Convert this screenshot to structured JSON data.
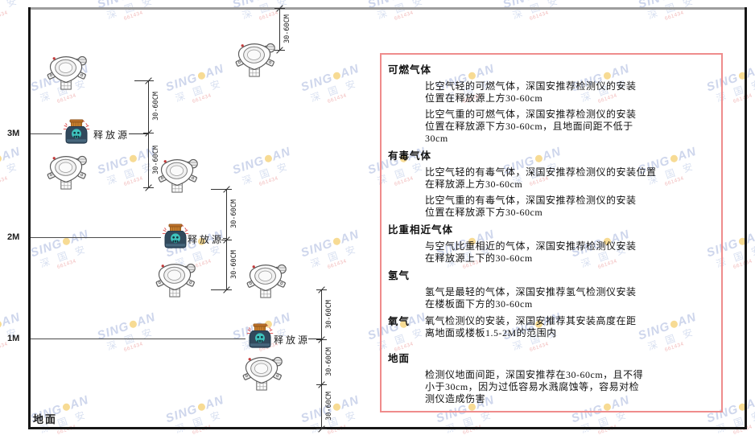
{
  "watermark": {
    "brand_left": "SING",
    "brand_right": "AN",
    "cn": "深 国 安",
    "code": "661434"
  },
  "colors": {
    "panel_border": "#ef8c8c",
    "watermark_blue": "#7d94cc",
    "watermark_red": "#e15a5a",
    "source_cap_orange": "#c8802f",
    "source_body_navy": "#31495c",
    "source_emblem_teal": "#3fc3bd",
    "detector_outline_gray": "#5a5a5a",
    "ceiling_gray": "#9d9d9d"
  },
  "diagram": {
    "ground_label": "地面",
    "release_source_label": "释放源",
    "dim_label": "30-60CM",
    "height_labels": [
      "3M",
      "2M",
      "1M"
    ]
  },
  "panel": {
    "sections": [
      {
        "title": "可燃气体",
        "paragraphs": [
          [
            "比空气轻的可燃气体，深国安推荐检测仪的安装",
            "位置在释放源上方30-60cm"
          ],
          [
            "比空气重的可燃气体，深国安推荐检测仪的安装",
            "位置在释放源下方30-60cm，且地面间距不低于",
            "30cm"
          ]
        ]
      },
      {
        "title": "有毒气体",
        "paragraphs": [
          [
            "比空气轻的有毒气体，深国安推荐检测仪的安装位置",
            "在释放源上方30-60cm"
          ],
          [
            "比空气重的有毒气体，深国安推荐检测仪的安装",
            "位置在释放源下方30-60cm"
          ]
        ]
      },
      {
        "title": "比重相近气体",
        "paragraphs": [
          [
            "与空气比重相近的气体，深国安推荐检测仪安装",
            "在释放源上下的30-60cm"
          ]
        ]
      },
      {
        "title": "氢气",
        "paragraphs": [
          [
            "氢气是最轻的气体，深国安推荐氢气检测仪安装",
            "在楼板面下方的30-60cm"
          ]
        ]
      },
      {
        "title": "氧气",
        "inline": true,
        "paragraphs": [
          [
            "氧气检测仪的安装，深国安推荐其安装高度在距",
            "离地面或楼板1.5-2M的范围内"
          ]
        ]
      },
      {
        "title": "地面",
        "gap": true,
        "paragraphs": [
          [
            "检测仪地面间距，深国安推荐在30-60cm，且不得",
            "小于30cm，因为过低容易水溅腐蚀等，容易对检",
            "测仪造成伤害"
          ]
        ]
      }
    ]
  }
}
